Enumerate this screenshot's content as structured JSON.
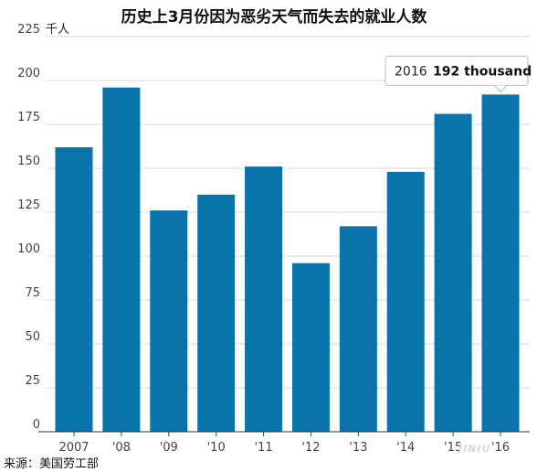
{
  "title": "历史上3月份因为恶劣天气而失去的就业人数",
  "source": "来源：美国劳工部",
  "watermark": "JINIU",
  "chart_data": {
    "type": "bar",
    "unit_label": "千人",
    "categories": [
      "2007",
      "'08",
      "'09",
      "'10",
      "'11",
      "'12",
      "'13",
      "'14",
      "'15",
      "'16"
    ],
    "values": [
      162,
      196,
      126,
      135,
      151,
      96,
      117,
      148,
      181,
      192
    ],
    "ylim": [
      0,
      225
    ],
    "yticks": [
      0,
      25,
      50,
      75,
      100,
      125,
      150,
      175,
      200,
      225
    ],
    "grid": true,
    "bar_color": "#0a73aa",
    "tooltip": {
      "year": "2016",
      "value_text": "192 thousand",
      "index": 9
    }
  }
}
